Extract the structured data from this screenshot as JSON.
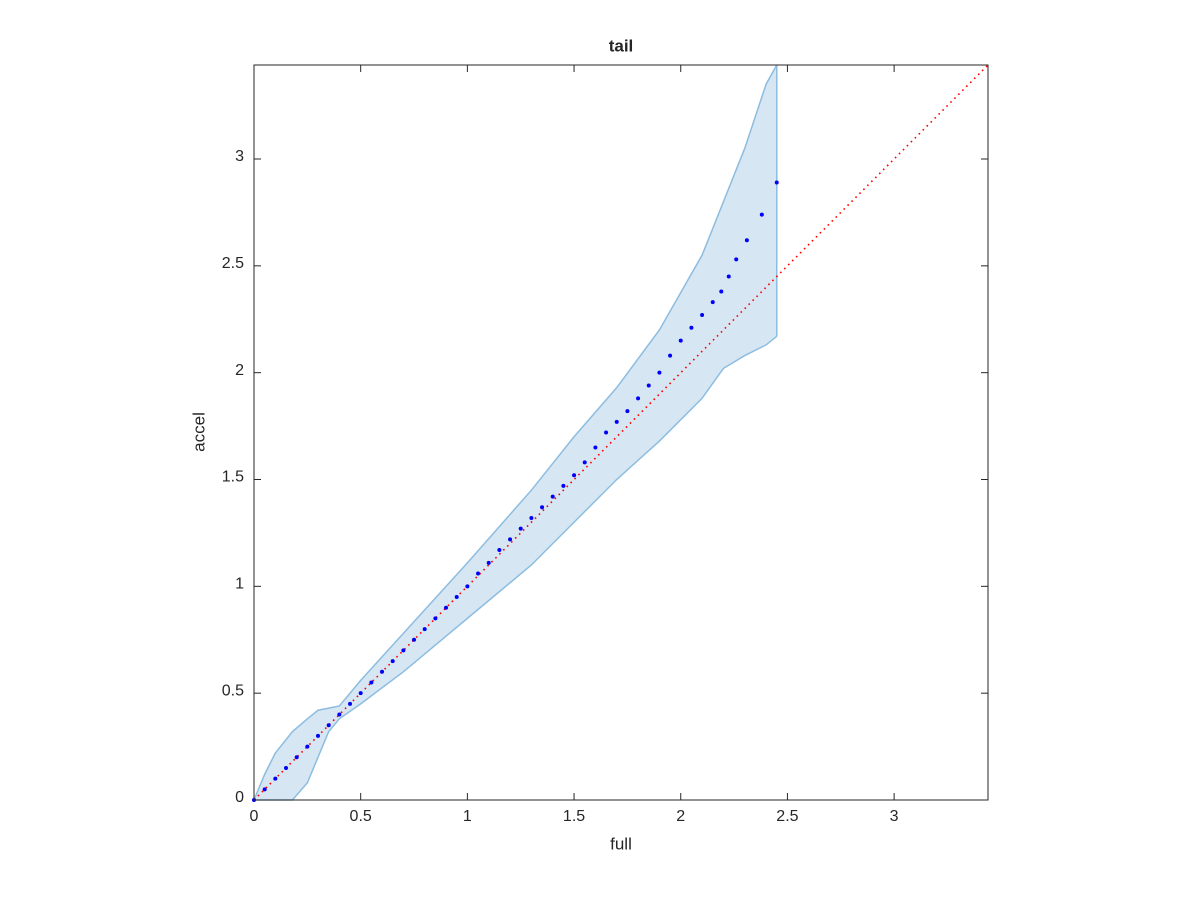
{
  "chart_data": {
    "type": "scatter",
    "title": "tail",
    "x_label": "full",
    "y_label": "accel",
    "xlim": [
      0,
      3.44
    ],
    "ylim": [
      0,
      3.44
    ],
    "xticks": [
      0,
      0.5,
      1,
      1.5,
      2,
      2.5,
      3
    ],
    "yticks": [
      0,
      0.5,
      1,
      1.5,
      2,
      2.5,
      3
    ],
    "points": {
      "color": "#0000ff",
      "x": [
        0,
        0.05,
        0.1,
        0.15,
        0.2,
        0.25,
        0.3,
        0.35,
        0.4,
        0.45,
        0.5,
        0.55,
        0.6,
        0.65,
        0.7,
        0.75,
        0.8,
        0.85,
        0.9,
        0.95,
        1.0,
        1.05,
        1.1,
        1.15,
        1.2,
        1.25,
        1.3,
        1.35,
        1.4,
        1.45,
        1.5,
        1.55,
        1.6,
        1.65,
        1.7,
        1.75,
        1.8,
        1.85,
        1.9,
        1.95,
        2.0,
        2.05,
        2.1,
        2.15,
        2.19,
        2.225,
        2.26,
        2.31,
        2.38,
        2.45
      ],
      "y": [
        0,
        0.05,
        0.1,
        0.15,
        0.2,
        0.25,
        0.3,
        0.35,
        0.4,
        0.45,
        0.5,
        0.55,
        0.6,
        0.65,
        0.7,
        0.75,
        0.8,
        0.85,
        0.9,
        0.95,
        1.0,
        1.06,
        1.11,
        1.17,
        1.22,
        1.27,
        1.32,
        1.37,
        1.42,
        1.47,
        1.52,
        1.58,
        1.65,
        1.72,
        1.77,
        1.82,
        1.88,
        1.94,
        2.0,
        2.08,
        2.15,
        2.21,
        2.27,
        2.33,
        2.38,
        2.45,
        2.53,
        2.62,
        2.74,
        2.89
      ]
    },
    "band": {
      "color": "#d6e6f3",
      "edge_color": "#8cbde0",
      "x": [
        0,
        0.05,
        0.1,
        0.18,
        0.25,
        0.3,
        0.35,
        0.4,
        0.5,
        0.7,
        1.0,
        1.3,
        1.5,
        1.7,
        1.9,
        2.1,
        2.2,
        2.3,
        2.4,
        2.45
      ],
      "lower": [
        0,
        0,
        0,
        0,
        0.08,
        0.2,
        0.32,
        0.38,
        0.45,
        0.6,
        0.85,
        1.1,
        1.3,
        1.5,
        1.68,
        1.88,
        2.02,
        2.08,
        2.13,
        2.17
      ],
      "upper": [
        0,
        0.12,
        0.22,
        0.32,
        0.38,
        0.42,
        0.43,
        0.44,
        0.56,
        0.78,
        1.11,
        1.45,
        1.7,
        1.93,
        2.2,
        2.55,
        2.8,
        3.05,
        3.35,
        3.44
      ]
    },
    "reference": {
      "color": "#ff0000",
      "x": [
        0,
        3.44
      ],
      "y": [
        0,
        3.44
      ]
    }
  }
}
